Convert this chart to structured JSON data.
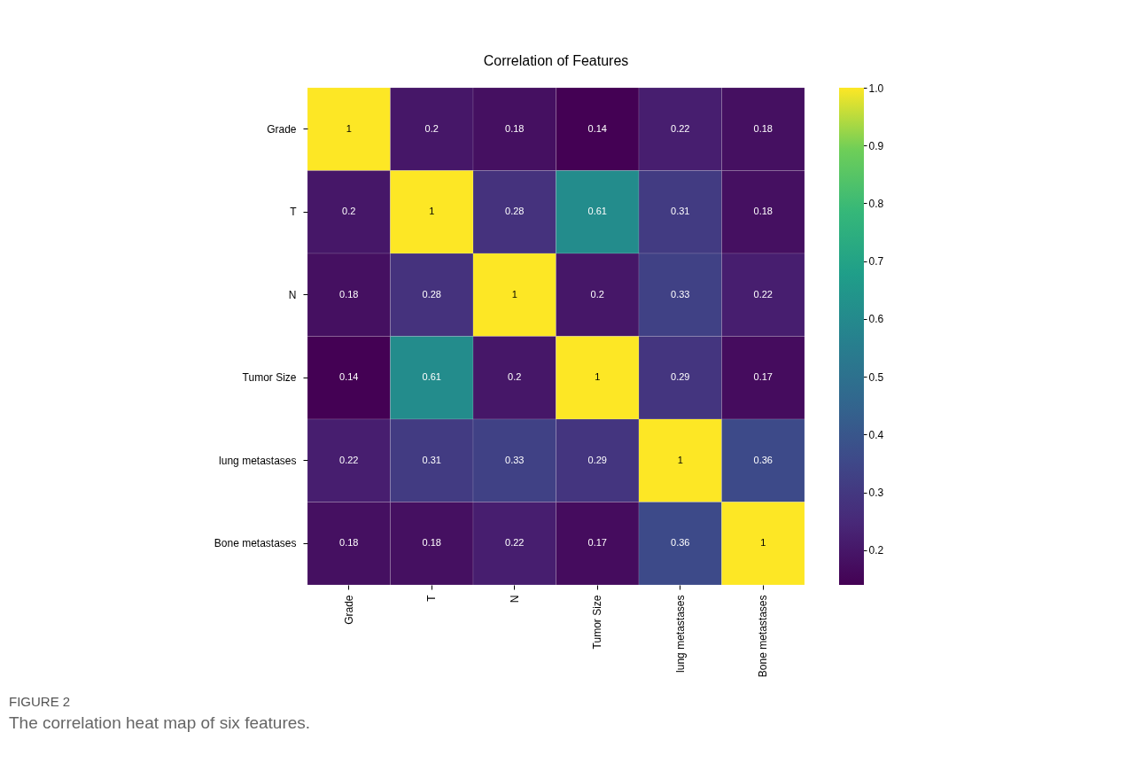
{
  "chart_data": {
    "type": "heatmap",
    "title": "Correlation of Features",
    "categories": [
      "Grade",
      "T",
      "N",
      "Tumor Size",
      "lung metastases",
      "Bone metastases"
    ],
    "y_categories": [
      "Grade",
      "T",
      "N",
      "Tumor Size",
      "lung metastases",
      "Bone metastases"
    ],
    "cells": [
      [
        1,
        0.2,
        0.18,
        0.14,
        0.22,
        0.18
      ],
      [
        0.2,
        1,
        0.28,
        0.61,
        0.31,
        0.18
      ],
      [
        0.18,
        0.28,
        1,
        0.2,
        0.33,
        0.22
      ],
      [
        0.14,
        0.61,
        0.2,
        1,
        0.29,
        0.17
      ],
      [
        0.22,
        0.31,
        0.33,
        0.29,
        1,
        0.36
      ],
      [
        0.18,
        0.18,
        0.22,
        0.17,
        0.36,
        1
      ]
    ],
    "data_labels": true,
    "clim": [
      0.14,
      1.0
    ],
    "cticks": [
      0.2,
      0.3,
      0.4,
      0.5,
      0.6,
      0.7,
      0.8,
      0.9,
      {
        "value": 1,
        "label": "1.0"
      }
    ],
    "annotations": [
      "FIGURE 2",
      "The correlation heat map of six features."
    ]
  }
}
